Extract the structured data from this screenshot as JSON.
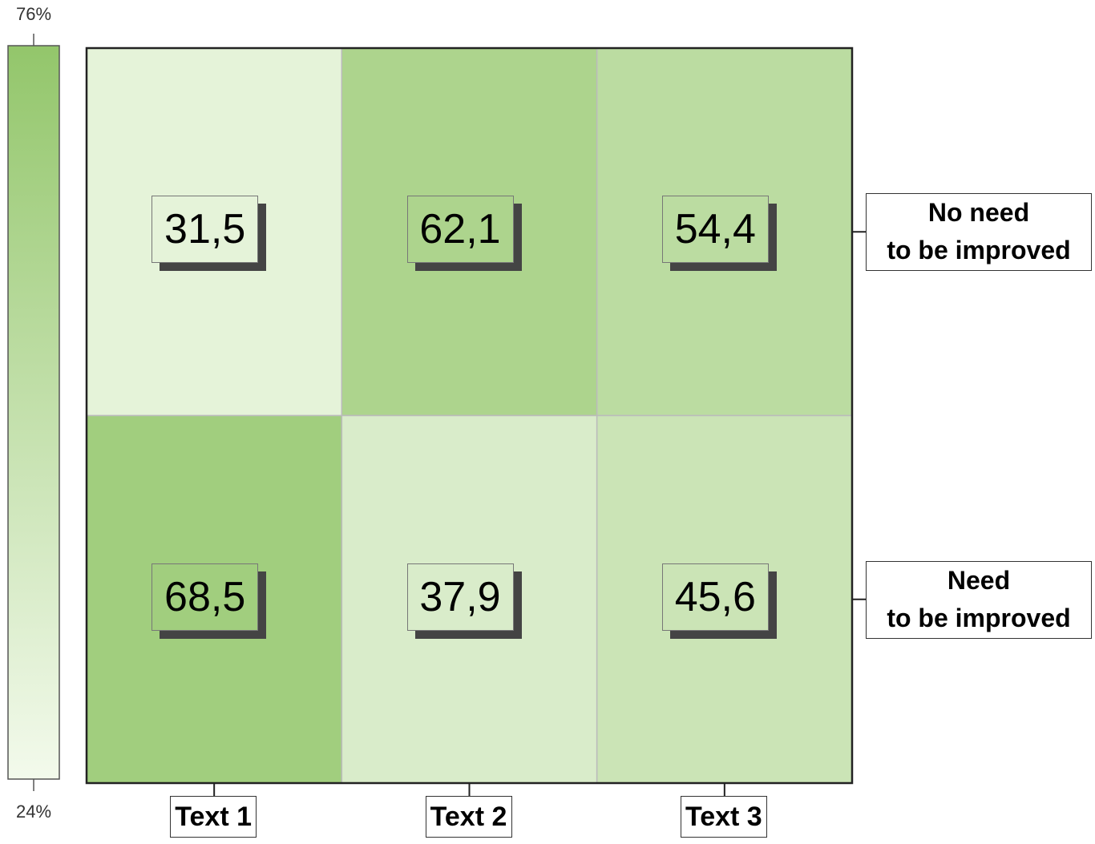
{
  "chart_data": {
    "type": "heatmap",
    "x_categories": [
      "Text 1",
      "Text 2",
      "Text 3"
    ],
    "y_categories": [
      "No need\nto be improved",
      "Need\nto be improved"
    ],
    "values": [
      [
        31.5,
        62.1,
        54.4
      ],
      [
        68.5,
        37.9,
        45.6
      ]
    ],
    "value_labels": [
      [
        "31,5",
        "62,1",
        "54,4"
      ],
      [
        "68,5",
        "37,9",
        "45,6"
      ]
    ],
    "colorbar_lim": [
      24,
      76
    ],
    "colorbar_ticks": [
      {
        "value": 24,
        "label": "24%"
      },
      {
        "value": 76,
        "label": "76%"
      }
    ],
    "cmap": [
      "#f3faec",
      "#93c66b"
    ]
  }
}
